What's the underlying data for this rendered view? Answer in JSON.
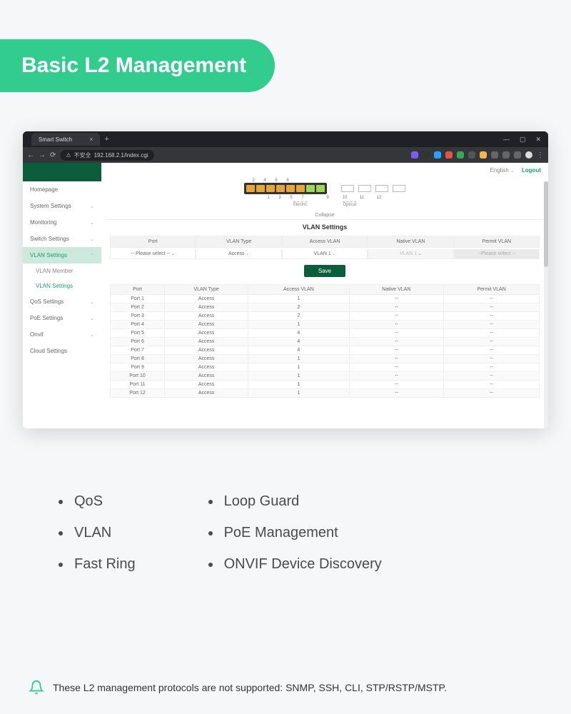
{
  "banner": {
    "title": "Basic L2 Management",
    "bg": "#32cc8f",
    "fg": "#ffffff"
  },
  "browser": {
    "tab_title": "Smart Switch",
    "url_prefix": "不安全",
    "url": "192.168.2.1/index.cgi",
    "window_controls": {
      "min": "—",
      "max": "▢",
      "close": "✕"
    },
    "ext_colors": [
      "#7a5cff",
      "#333333",
      "#2aa3ff",
      "#e0564b",
      "#3aa757",
      "#555555",
      "#f2b84b",
      "#666666",
      "#666666",
      "#666666"
    ]
  },
  "app": {
    "language": "English",
    "logout": "Logout",
    "sidebar": [
      {
        "label": "Homepage",
        "type": "item"
      },
      {
        "label": "System Settings",
        "type": "item",
        "expand": "down"
      },
      {
        "label": "Monitoring",
        "type": "item",
        "expand": "down"
      },
      {
        "label": "Switch Settings",
        "type": "item",
        "expand": "down"
      },
      {
        "label": "VLAN Settings",
        "type": "item",
        "expand": "up",
        "active": true
      },
      {
        "label": "VLAN Member",
        "type": "sub"
      },
      {
        "label": "VLAN Settings",
        "type": "sub",
        "selected": true
      },
      {
        "label": "QoS Settings",
        "type": "item",
        "expand": "down"
      },
      {
        "label": "PoE Settings",
        "type": "item",
        "expand": "down"
      },
      {
        "label": "Onvif",
        "type": "item",
        "expand": "down"
      },
      {
        "label": "Cloud Settings",
        "type": "item"
      }
    ],
    "ports": {
      "top_numbers": [
        "2",
        "4",
        "6",
        "8"
      ],
      "rj_colors": [
        "#e4a63a",
        "#e4a63a",
        "#e4a63a",
        "#e4a63a",
        "#e4a63a",
        "#e4a63a",
        "#9ed65a",
        "#9ed65a"
      ],
      "bottom_numbers_rj": [
        "1",
        "3",
        "5",
        "7"
      ],
      "bottom_numbers_sfp": [
        "9",
        "10",
        "11",
        "12"
      ],
      "label_electric": "Electric",
      "label_optical": "Optical"
    },
    "collapse": "Collapse",
    "section_title": "VLAN Settings",
    "config_headers": [
      "Port",
      "VLAN Type",
      "Access VLAN",
      "Native VLAN",
      "Permit VLAN"
    ],
    "config_values": {
      "port": "-- Please select --",
      "vlan_type": "Access",
      "access_vlan": "VLAN 1",
      "native_vlan": "VLAN 1",
      "permit_vlan": "--Please select --"
    },
    "save_label": "Save",
    "table": {
      "columns": [
        "Port",
        "VLAN Type",
        "Access VLAN",
        "Native VLAN",
        "Permit VLAN"
      ],
      "rows": [
        [
          "Port 1",
          "Access",
          "1",
          "--",
          "--"
        ],
        [
          "Port 2",
          "Access",
          "2",
          "--",
          "--"
        ],
        [
          "Port 3",
          "Access",
          "2",
          "--",
          "--"
        ],
        [
          "Port 4",
          "Access",
          "1",
          "--",
          "--"
        ],
        [
          "Port 5",
          "Access",
          "4",
          "--",
          "--"
        ],
        [
          "Port 6",
          "Access",
          "4",
          "--",
          "--"
        ],
        [
          "Port 7",
          "Access",
          "4",
          "--",
          "--"
        ],
        [
          "Port 8",
          "Access",
          "1",
          "--",
          "--"
        ],
        [
          "Port 9",
          "Access",
          "1",
          "--",
          "--"
        ],
        [
          "Port 10",
          "Access",
          "1",
          "--",
          "--"
        ],
        [
          "Port 11",
          "Access",
          "1",
          "--",
          "--"
        ],
        [
          "Port 12",
          "Access",
          "1",
          "--",
          "--"
        ]
      ]
    }
  },
  "features": {
    "left": [
      "QoS",
      "VLAN",
      "Fast Ring"
    ],
    "right": [
      "Loop Guard",
      "PoE Management",
      "ONVIF Device Discovery"
    ]
  },
  "note": "These L2 management protocols are not supported: SNMP, SSH, CLI, STP/RSTP/MSTP."
}
